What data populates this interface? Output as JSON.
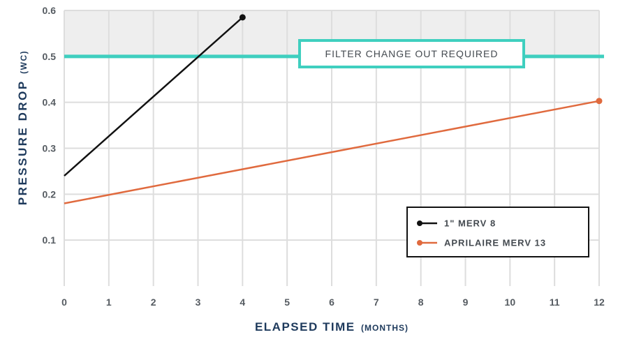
{
  "chart_data": {
    "type": "line",
    "xlabel": {
      "main": "ELAPSED TIME",
      "unit": "(MONTHS)"
    },
    "ylabel": {
      "main": "PRESSURE DROP",
      "unit": "(WC)"
    },
    "x_ticks": [
      "0",
      "1",
      "2",
      "3",
      "4",
      "5",
      "6",
      "7",
      "8",
      "9",
      "10",
      "11",
      "12"
    ],
    "y_ticks": [
      "0.1",
      "0.2",
      "0.3",
      "0.4",
      "0.5",
      "0.6"
    ],
    "xlim": [
      0,
      12
    ],
    "ylim": [
      0,
      0.6
    ],
    "grid": true,
    "threshold": {
      "value": 0.5,
      "label": "FILTER CHANGE OUT REQUIRED",
      "color": "#3fcfbf",
      "zone_color": "#eeeeee"
    },
    "series": [
      {
        "name": "1\" MERV 8",
        "color": "#111111",
        "x": [
          0,
          4
        ],
        "y": [
          0.24,
          0.585
        ]
      },
      {
        "name": "APRILAIRE MERV 13",
        "color": "#e06a3e",
        "x": [
          0,
          12
        ],
        "y": [
          0.18,
          0.403
        ]
      }
    ],
    "legend": {
      "placement": "bottom-right"
    }
  }
}
